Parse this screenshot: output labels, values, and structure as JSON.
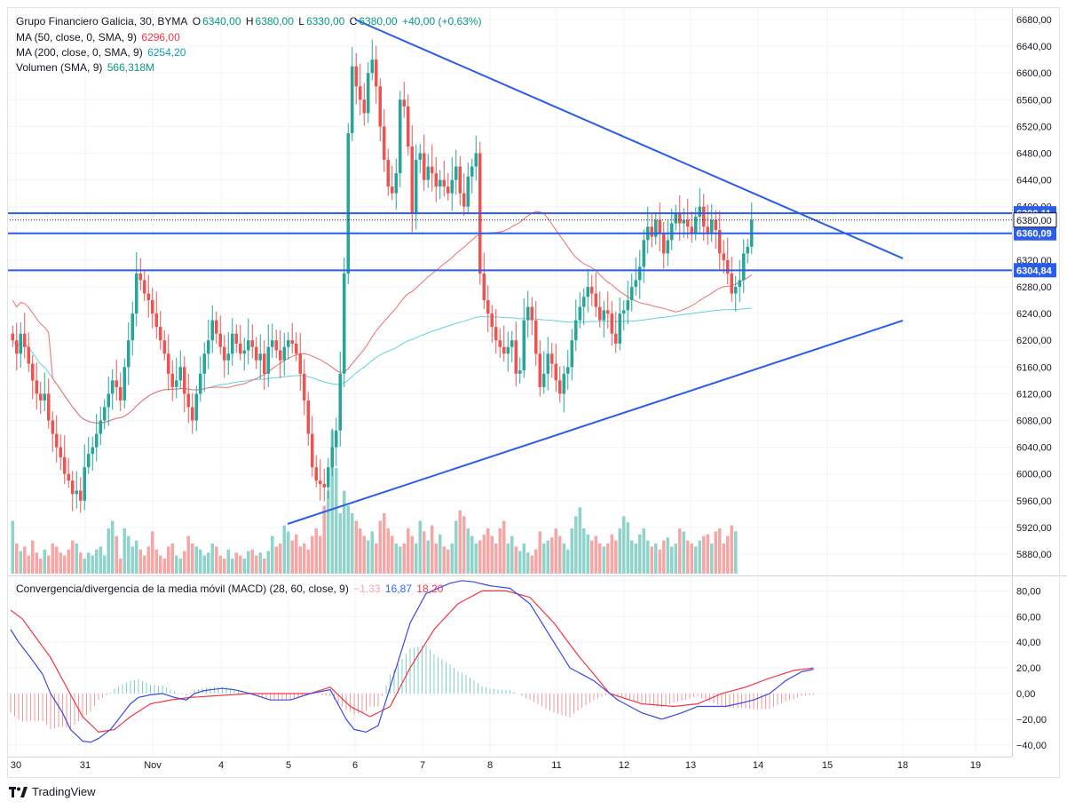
{
  "legend": {
    "symbol": "Grupo Financiero Galicia, 30, BYMA",
    "open_label": "O",
    "open": "6340,00",
    "high_label": "H",
    "high": "6380,00",
    "low_label": "L",
    "low": "6330,00",
    "close_label": "C",
    "close": "6380,00",
    "change": "+40,00 (+0,63%)",
    "ma50_label": "MA (50, close, 0, SMA, 9)",
    "ma50_value": "6296,00",
    "ma200_label": "MA (200, close, 0, SMA, 9)",
    "ma200_value": "6254,20",
    "volume_label": "Volumen (SMA, 9)",
    "volume_value": "566,318M"
  },
  "macd_legend": {
    "label": "Convergencia/divergencia de la media móvil (MACD) (28, 60, close, 9)",
    "hist": "−1,33",
    "macd": "16,87",
    "signal": "18,20"
  },
  "footer": {
    "brand": "TradingView"
  },
  "colors": {
    "up": "#26a69a",
    "down": "#ef5350",
    "ma50": "#f06d6d",
    "ma200": "#5fd3df",
    "trend": "#2a5ee8",
    "macd": "#3a48e8",
    "signal": "#f23645",
    "vol_up": "#8fd4cb",
    "vol_down": "#f6a7a5"
  },
  "chart_data": [
    {
      "type": "candlestick",
      "title": "Grupo Financiero Galicia, 30, BYMA",
      "x_ticks": [
        "30",
        "31",
        "Nov",
        "4",
        "5",
        "6",
        "7",
        "8",
        "11",
        "12",
        "13",
        "14",
        "15",
        "18",
        "19"
      ],
      "ylim": [
        5840,
        6690
      ],
      "y_ticks": [
        5880,
        5920,
        5960,
        6000,
        6040,
        6080,
        6120,
        6160,
        6200,
        6240,
        6280,
        6320,
        6360,
        6400,
        6440,
        6480,
        6520,
        6560,
        6600,
        6640,
        6680
      ],
      "y_tick_labels": [
        "5880,00",
        "5920,00",
        "5960,00",
        "6000,00",
        "6040,00",
        "6080,00",
        "6120,00",
        "6160,00",
        "6200,00",
        "6240,00",
        "6280,00",
        "6320,00",
        "6360,00",
        "6400,00",
        "6440,00",
        "6480,00",
        "6520,00",
        "6560,00",
        "6600,00",
        "6640,00",
        "6680,00"
      ],
      "horizontal_levels": [
        {
          "value": 6390.11,
          "label": "6390,11"
        },
        {
          "value": 6360.09,
          "label": "6360,09"
        },
        {
          "value": 6304.84,
          "label": "6304,84"
        }
      ],
      "last_price": {
        "value": 6380,
        "label": "6380,00"
      },
      "close_series": [
        6200,
        6180,
        6210,
        6190,
        6165,
        6140,
        6120,
        6110,
        6120,
        6080,
        6060,
        6040,
        6025,
        6000,
        5990,
        5970,
        5975,
        5960,
        6010,
        6030,
        6040,
        6060,
        6080,
        6100,
        6120,
        6140,
        6130,
        6110,
        6160,
        6200,
        6240,
        6300,
        6290,
        6270,
        6260,
        6240,
        6220,
        6200,
        6180,
        6150,
        6130,
        6140,
        6160,
        6120,
        6100,
        6080,
        6120,
        6150,
        6180,
        6200,
        6230,
        6210,
        6190,
        6170,
        6180,
        6210,
        6195,
        6180,
        6185,
        6200,
        6190,
        6170,
        6180,
        6150,
        6190,
        6200,
        6185,
        6170,
        6190,
        6200,
        6195,
        6180,
        6150,
        6110,
        6060,
        6010,
        5990,
        5985,
        5980,
        6010,
        6040,
        6065,
        6150,
        6300,
        6510,
        6610,
        6580,
        6560,
        6540,
        6600,
        6620,
        6580,
        6520,
        6470,
        6430,
        6420,
        6450,
        6560,
        6550,
        6490,
        6390,
        6470,
        6480,
        6440,
        6460,
        6450,
        6430,
        6440,
        6430,
        6420,
        6440,
        6460,
        6420,
        6400,
        6445,
        6460,
        6480,
        6300,
        6260,
        6240,
        6220,
        6200,
        6190,
        6180,
        6190,
        6200,
        6150,
        6155,
        6230,
        6250,
        6230,
        6180,
        6130,
        6150,
        6180,
        6165,
        6140,
        6120,
        6150,
        6160,
        6200,
        6230,
        6250,
        6265,
        6280,
        6270,
        6250,
        6230,
        6245,
        6240,
        6210,
        6195,
        6240,
        6245,
        6260,
        6280,
        6290,
        6310,
        6350,
        6370,
        6355,
        6380,
        6360,
        6330,
        6350,
        6375,
        6390,
        6375,
        6380,
        6370,
        6360,
        6385,
        6400,
        6370,
        6360,
        6380,
        6365,
        6330,
        6320,
        6300,
        6270,
        6280,
        6290,
        6330,
        6340,
        6380
      ]
    },
    {
      "type": "bar",
      "title": "Volumen (SMA, 9)",
      "values": [
        0.35,
        0.2,
        0.15,
        0.18,
        0.12,
        0.22,
        0.14,
        0.1,
        0.16,
        0.12,
        0.2,
        0.18,
        0.14,
        0.12,
        0.16,
        0.22,
        0.2,
        0.14,
        0.1,
        0.14,
        0.12,
        0.16,
        0.18,
        0.12,
        0.3,
        0.35,
        0.25,
        0.1,
        0.3,
        0.25,
        0.18,
        0.22,
        0.16,
        0.12,
        0.18,
        0.28,
        0.16,
        0.12,
        0.1,
        0.18,
        0.2,
        0.12,
        0.1,
        0.15,
        0.25,
        0.2,
        0.18,
        0.16,
        0.12,
        0.14,
        0.2,
        0.18,
        0.12,
        0.1,
        0.16,
        0.1,
        0.14,
        0.12,
        0.1,
        0.15,
        0.16,
        0.12,
        0.14,
        0.1,
        0.15,
        0.25,
        0.18,
        0.2,
        0.32,
        0.28,
        0.22,
        0.26,
        0.18,
        0.2,
        0.16,
        0.25,
        0.3,
        0.25,
        0.45,
        0.55,
        0.95,
        0.7,
        0.4,
        0.55,
        0.45,
        0.4,
        0.35,
        0.3,
        0.25,
        0.22,
        0.28,
        0.2,
        0.35,
        0.4,
        0.3,
        0.25,
        0.2,
        0.18,
        0.2,
        0.3,
        0.25,
        0.2,
        0.35,
        0.28,
        0.22,
        0.32,
        0.2,
        0.26,
        0.18,
        0.16,
        0.2,
        0.35,
        0.42,
        0.38,
        0.3,
        0.25,
        0.2,
        0.22,
        0.26,
        0.3,
        0.25,
        0.2,
        0.3,
        0.35,
        0.2,
        0.25,
        0.18,
        0.15,
        0.2,
        0.14,
        0.12,
        0.16,
        0.28,
        0.2,
        0.22,
        0.24,
        0.3,
        0.25,
        0.2,
        0.16,
        0.3,
        0.38,
        0.44,
        0.3,
        0.26,
        0.22,
        0.25,
        0.2,
        0.18,
        0.2,
        0.26,
        0.22,
        0.3,
        0.38,
        0.34,
        0.22,
        0.2,
        0.26,
        0.3,
        0.22,
        0.18,
        0.2,
        0.16,
        0.22,
        0.24,
        0.18,
        0.2,
        0.3,
        0.28,
        0.22,
        0.2,
        0.18,
        0.22,
        0.25,
        0.26,
        0.2,
        0.28,
        0.3,
        0.2,
        0.25,
        0.32,
        0.28
      ]
    },
    {
      "type": "line",
      "title": "Convergencia/divergencia de la media móvil (MACD) (28, 60, close, 9)",
      "ylim": [
        -48,
        90
      ],
      "y_ticks": [
        -40,
        -20,
        0,
        20,
        40,
        60,
        80
      ],
      "y_tick_labels": [
        "−40,00",
        "−20,00",
        "0,00",
        "20,00",
        "40,00",
        "60,00",
        "80,00"
      ],
      "series": [
        {
          "name": "MACD",
          "x": [
            0,
            2,
            5,
            8,
            10,
            13,
            15,
            18,
            20,
            22,
            25,
            27,
            30,
            32,
            35,
            38,
            41,
            44,
            46,
            48,
            50,
            53,
            56,
            60,
            65,
            70,
            75,
            80,
            84,
            86,
            89,
            92,
            96,
            100,
            104,
            107,
            110,
            113,
            116,
            120,
            125,
            130,
            135,
            140,
            146,
            152,
            158,
            163,
            168,
            172,
            175,
            179,
            182,
            186,
            190,
            194,
            198,
            201
          ],
          "values": [
            50,
            40,
            28,
            15,
            0,
            -15,
            -28,
            -37,
            -38,
            -35,
            -28,
            -20,
            -8,
            -3,
            -1,
            0,
            -3,
            -5,
            0,
            2,
            3,
            4,
            3,
            0,
            -5,
            -5,
            0,
            3,
            -20,
            -28,
            -30,
            -25,
            15,
            55,
            78,
            82,
            86,
            88,
            87,
            84,
            82,
            70,
            45,
            20,
            10,
            -5,
            -15,
            -20,
            -15,
            -10,
            -10,
            -10,
            -8,
            -5,
            0,
            10,
            17,
            19
          ]
        },
        {
          "name": "Signal",
          "x": [
            0,
            3,
            6,
            10,
            14,
            18,
            22,
            26,
            30,
            35,
            40,
            45,
            50,
            55,
            60,
            65,
            70,
            75,
            80,
            85,
            90,
            95,
            100,
            106,
            112,
            118,
            124,
            130,
            136,
            142,
            150,
            158,
            166,
            172,
            178,
            184,
            190,
            196,
            201
          ],
          "values": [
            65,
            58,
            45,
            28,
            5,
            -18,
            -30,
            -28,
            -18,
            -8,
            -5,
            -3,
            -2,
            -1,
            0,
            0,
            0,
            0,
            5,
            -10,
            -18,
            -10,
            20,
            50,
            70,
            80,
            80,
            75,
            55,
            30,
            0,
            -8,
            -10,
            -8,
            0,
            5,
            12,
            18,
            20
          ]
        }
      ]
    }
  ]
}
